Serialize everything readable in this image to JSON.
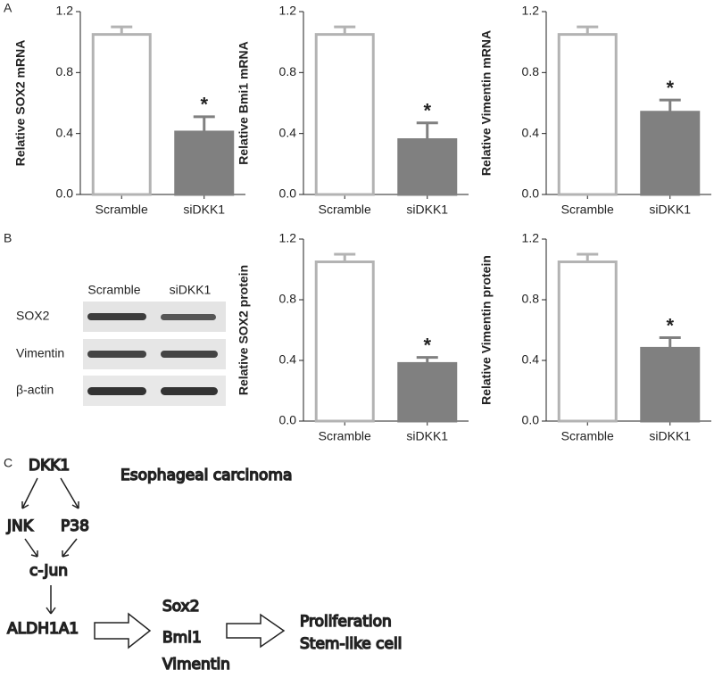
{
  "panel_labels": [
    "A",
    "B",
    "C"
  ],
  "chart_data": [
    {
      "type": "bar",
      "ylabel": "Relative SOX2 mRNA",
      "categories": [
        "Scramble",
        "siDKK1"
      ],
      "values": [
        1.05,
        0.41
      ],
      "errors": [
        0.05,
        0.1
      ],
      "significance": [
        null,
        "*"
      ],
      "colors": [
        "#ffffff",
        "#808080"
      ],
      "edge_colors": [
        "#b3b3b3",
        "#808080"
      ],
      "ylim": [
        0,
        1.2
      ],
      "yticks": [
        {
          "value": 0,
          "label": "0.0"
        },
        0.4,
        0.8,
        1.2
      ],
      "grid": false
    },
    {
      "type": "bar",
      "ylabel": "Relative Bmi1 mRNA",
      "categories": [
        "Scramble",
        "siDKK1"
      ],
      "values": [
        1.05,
        0.36
      ],
      "errors": [
        0.05,
        0.11
      ],
      "significance": [
        null,
        "*"
      ],
      "colors": [
        "#ffffff",
        "#808080"
      ],
      "edge_colors": [
        "#b3b3b3",
        "#808080"
      ],
      "ylim": [
        0,
        1.2
      ],
      "yticks": [
        {
          "value": 0,
          "label": "0.0"
        },
        0.4,
        0.8,
        1.2
      ],
      "grid": false
    },
    {
      "type": "bar",
      "ylabel": "Relative Vimentin mRNA",
      "categories": [
        "Scramble",
        "siDKK1"
      ],
      "values": [
        1.05,
        0.54
      ],
      "errors": [
        0.05,
        0.08
      ],
      "significance": [
        null,
        "*"
      ],
      "colors": [
        "#ffffff",
        "#808080"
      ],
      "edge_colors": [
        "#b3b3b3",
        "#808080"
      ],
      "ylim": [
        0,
        1.2
      ],
      "yticks": [
        {
          "value": 0,
          "label": "0.0"
        },
        0.4,
        0.8,
        1.2
      ],
      "grid": false
    },
    {
      "type": "bar",
      "ylabel": "Relative SOX2 protein",
      "categories": [
        "Scramble",
        "siDKK1"
      ],
      "values": [
        1.05,
        0.38
      ],
      "errors": [
        0.05,
        0.04
      ],
      "significance": [
        null,
        "*"
      ],
      "colors": [
        "#ffffff",
        "#808080"
      ],
      "edge_colors": [
        "#b3b3b3",
        "#808080"
      ],
      "ylim": [
        0,
        1.2
      ],
      "yticks": [
        {
          "value": 0,
          "label": "0.0"
        },
        0.4,
        0.8,
        1.2
      ],
      "grid": false
    },
    {
      "type": "bar",
      "ylabel": "Relative Vimentin protein",
      "categories": [
        "Scramble",
        "siDKK1"
      ],
      "values": [
        1.05,
        0.48
      ],
      "errors": [
        0.05,
        0.07
      ],
      "significance": [
        null,
        "*"
      ],
      "colors": [
        "#ffffff",
        "#808080"
      ],
      "edge_colors": [
        "#b3b3b3",
        "#808080"
      ],
      "ylim": [
        0,
        1.2
      ],
      "yticks": [
        {
          "value": 0,
          "label": "0.0"
        },
        0.4,
        0.8,
        1.2
      ],
      "grid": false
    }
  ],
  "blot": {
    "lanes": [
      "Scramble",
      "siDKK1"
    ],
    "rows": [
      "SOX2",
      "Vimentin",
      "β-actin"
    ]
  },
  "diagram": {
    "title": "Esophageal carcinoma",
    "nodes": [
      "DKK1",
      "JNK",
      "P38",
      "c-Jun",
      "ALDH1A1",
      "Sox2",
      "Bmi1",
      "Vimentin",
      "Proliferation",
      "Stem-like cell"
    ]
  }
}
